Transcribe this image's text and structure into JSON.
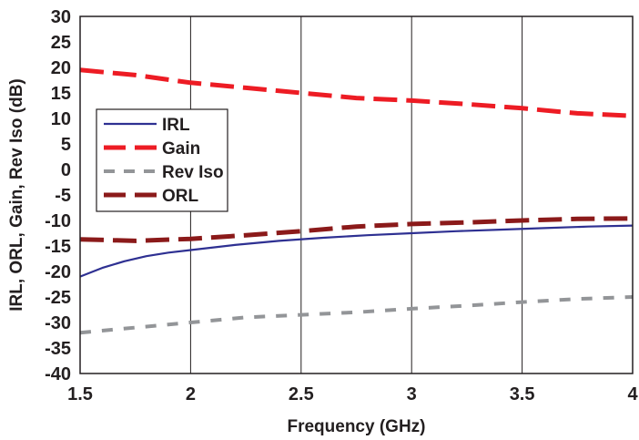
{
  "chart_data": {
    "type": "line",
    "xlabel": "Frequency (GHz)",
    "ylabel": "IRL, ORL, Gain, Rev Iso (dB)",
    "xlim": [
      1.5,
      4
    ],
    "ylim": [
      -40,
      30
    ],
    "xticks": [
      "1.5",
      "2",
      "2.5",
      "3",
      "3.5",
      "4"
    ],
    "yticks": [
      "30",
      "25",
      "20",
      "15",
      "10",
      "5",
      "0",
      "-5",
      "-10",
      "-15",
      "-20",
      "-25",
      "-30",
      "-35",
      "-40"
    ],
    "grid": "vertical",
    "legend_position": "left",
    "series": [
      {
        "name": "IRL",
        "color": "#2e3092",
        "dash": "solid",
        "x": [
          1.5,
          1.6,
          1.7,
          1.8,
          1.9,
          2.0,
          2.2,
          2.4,
          2.6,
          2.8,
          3.0,
          3.2,
          3.4,
          3.6,
          3.8,
          4.0
        ],
        "y": [
          -21,
          -19.3,
          -18,
          -17,
          -16.3,
          -15.8,
          -14.8,
          -14,
          -13.4,
          -12.9,
          -12.5,
          -12.1,
          -11.8,
          -11.5,
          -11.2,
          -11
        ]
      },
      {
        "name": "Gain",
        "color": "#ed1c24",
        "dash": "longdash",
        "x": [
          1.5,
          1.75,
          2.0,
          2.25,
          2.5,
          2.75,
          3.0,
          3.25,
          3.5,
          3.75,
          4.0
        ],
        "y": [
          19.5,
          18.5,
          17,
          16,
          15,
          14,
          13.5,
          12.8,
          12,
          11,
          10.5
        ]
      },
      {
        "name": "Rev Iso",
        "color": "#939598",
        "dash": "dash",
        "x": [
          1.5,
          1.75,
          2.0,
          2.25,
          2.5,
          2.75,
          3.0,
          3.25,
          3.5,
          3.75,
          4.0
        ],
        "y": [
          -32,
          -31,
          -30,
          -29,
          -28.5,
          -28,
          -27.3,
          -26.7,
          -26,
          -25.4,
          -25
        ]
      },
      {
        "name": "ORL",
        "color": "#8b1a1a",
        "dash": "longdash",
        "x": [
          1.5,
          1.75,
          2.0,
          2.25,
          2.5,
          2.75,
          3.0,
          3.25,
          3.5,
          3.75,
          4.0
        ],
        "y": [
          -13.7,
          -14,
          -13.6,
          -12.9,
          -12.1,
          -11.2,
          -10.7,
          -10.4,
          -10,
          -9.7,
          -9.6
        ]
      }
    ]
  }
}
